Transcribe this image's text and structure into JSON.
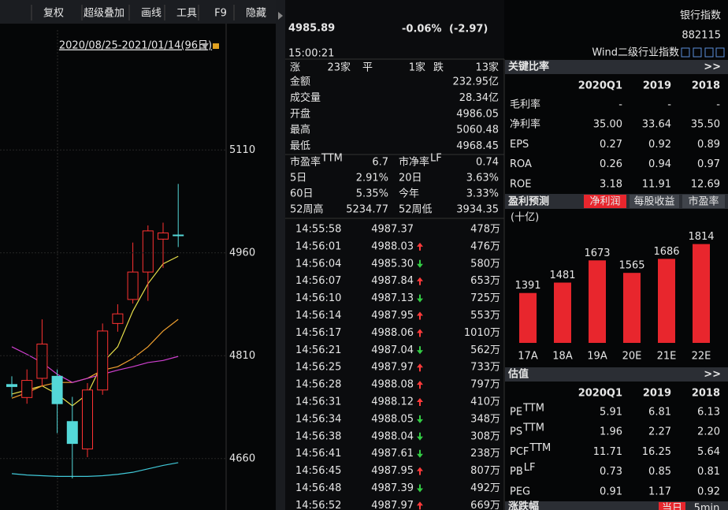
{
  "toolbar": [
    "复权",
    "超级叠加",
    "画线",
    "工具",
    "F9",
    "隐藏"
  ],
  "chart_data": [
    {
      "type": "candlestick",
      "date_range": "2020/08/25-2021/01/14(96日)",
      "ylim": [
        4585,
        5285
      ],
      "yticks": [
        4660,
        4810,
        4960,
        5110
      ],
      "grid": true,
      "up_color": "#ff3232",
      "down_color": "#54d8d8",
      "open": [
        4768,
        4749,
        4777,
        4780,
        4714,
        4674,
        4760,
        4857,
        4892,
        4932,
        4980,
        4986.05
      ],
      "high": [
        4780,
        4790,
        4863,
        4790,
        4750,
        4770,
        4857,
        4885,
        4975,
        5000,
        5004,
        5060.48
      ],
      "low": [
        4750,
        4740,
        4766,
        4697,
        4631,
        4662,
        4753,
        4845,
        4886,
        4890,
        4938,
        4968.45
      ],
      "close": [
        4765,
        4774,
        4827,
        4740,
        4682,
        4760,
        4846,
        4871,
        4932,
        4992,
        4989,
        4985.89
      ],
      "series": [
        {
          "color": "#e8e04a",
          "values": [
            4754,
            4760,
            4766,
            4754,
            4737,
            4754,
            4800,
            4823,
            4875,
            4915,
            4944,
            4955
          ]
        },
        {
          "color": "#f0a030",
          "values": [
            4748,
            4756,
            4766,
            4771,
            4771,
            4777,
            4789,
            4794,
            4806,
            4823,
            4846,
            4863
          ]
        },
        {
          "color": "#d040d0",
          "values": [
            4823,
            4812,
            4800,
            4783,
            4771,
            4777,
            4783,
            4789,
            4794,
            4800,
            4803,
            4809
          ]
        },
        {
          "color": "#40c8d8",
          "values": [
            4638,
            4636,
            4635,
            4634,
            4634,
            4634,
            4635,
            4637,
            4640,
            4645,
            4650,
            4654
          ]
        }
      ]
    },
    {
      "type": "bar",
      "unit": "(十亿)",
      "categories": [
        "17A",
        "18A",
        "19A",
        "20E",
        "21E",
        "22E"
      ],
      "values": [
        1391,
        1481,
        1673,
        1565,
        1686,
        1814
      ],
      "color": "#e8262d",
      "ylim": [
        960,
        1900
      ]
    }
  ],
  "header": {
    "price": "4985.89",
    "change_pct": "-0.06%",
    "change": "(-2.97)",
    "name": "银行指数",
    "code": "882115",
    "time": "15:00:21",
    "category": "Wind二级行业指数"
  },
  "breadth": {
    "up_label": "涨",
    "up": "23家",
    "flat_label": "平",
    "flat": "1家",
    "down_label": "跌",
    "down": "13家"
  },
  "quote": [
    {
      "label": "金额",
      "value": "232.95亿",
      "color": "#e6e6e6"
    },
    {
      "label": "成交量",
      "value": "28.34亿",
      "color": "#e6e6e6"
    },
    {
      "label": "开盘",
      "value": "4986.05",
      "color": "#33cc44"
    },
    {
      "label": "最高",
      "value": "5060.48",
      "color": "#ff3b3b"
    },
    {
      "label": "最低",
      "value": "4968.45",
      "color": "#33cc44"
    }
  ],
  "stats": [
    [
      {
        "label": "市盈率",
        "sup": "TTM",
        "value": "6.7",
        "color": "#e6e6e6"
      },
      {
        "label": "市净率",
        "sup": "LF",
        "value": "0.74",
        "color": "#e6e6e6"
      }
    ],
    [
      {
        "label": "5日",
        "value": "2.91%",
        "color": "#ff3b3b"
      },
      {
        "label": "20日",
        "value": "3.63%",
        "color": "#ff3b3b"
      }
    ],
    [
      {
        "label": "60日",
        "value": "5.35%",
        "color": "#ff3b3b"
      },
      {
        "label": "今年",
        "value": "3.33%",
        "color": "#ff3b3b"
      }
    ],
    [
      {
        "label": "52周高",
        "value": "5234.77",
        "color": "#e6e6e6"
      },
      {
        "label": "52周低",
        "value": "3934.35",
        "color": "#e6e6e6"
      }
    ]
  ],
  "ticks": [
    {
      "time": "14:55:58",
      "price": "4987.37",
      "volume": "478万",
      "trend": null
    },
    {
      "time": "14:56:01",
      "price": "4988.03",
      "volume": "476万",
      "trend": "up"
    },
    {
      "time": "14:56:04",
      "price": "4985.30",
      "volume": "580万",
      "trend": "down"
    },
    {
      "time": "14:56:07",
      "price": "4987.84",
      "volume": "653万",
      "trend": "up"
    },
    {
      "time": "14:56:10",
      "price": "4987.13",
      "volume": "725万",
      "trend": "down"
    },
    {
      "time": "14:56:14",
      "price": "4987.95",
      "volume": "553万",
      "trend": "up"
    },
    {
      "time": "14:56:17",
      "price": "4988.06",
      "volume": "1010万",
      "trend": "up"
    },
    {
      "time": "14:56:21",
      "price": "4987.04",
      "volume": "562万",
      "trend": "down"
    },
    {
      "time": "14:56:25",
      "price": "4987.97",
      "volume": "733万",
      "trend": "up"
    },
    {
      "time": "14:56:28",
      "price": "4988.08",
      "volume": "797万",
      "trend": "up"
    },
    {
      "time": "14:56:31",
      "price": "4988.12",
      "volume": "410万",
      "trend": "up"
    },
    {
      "time": "14:56:34",
      "price": "4988.05",
      "volume": "348万",
      "trend": "down"
    },
    {
      "time": "14:56:38",
      "price": "4988.04",
      "volume": "308万",
      "trend": "down"
    },
    {
      "time": "14:56:41",
      "price": "4987.61",
      "volume": "238万",
      "trend": "down"
    },
    {
      "time": "14:56:45",
      "price": "4987.95",
      "volume": "807万",
      "trend": "up"
    },
    {
      "time": "14:56:48",
      "price": "4987.39",
      "volume": "492万",
      "trend": "down"
    },
    {
      "time": "14:56:52",
      "price": "4987.97",
      "volume": "669万",
      "trend": "up"
    }
  ],
  "key_ratios": {
    "title": "关键比率",
    "more": ">>",
    "columns": [
      "2020Q1",
      "2019",
      "2018"
    ],
    "rows": [
      {
        "label": "毛利率",
        "values": [
          "-",
          "-",
          "-"
        ]
      },
      {
        "label": "净利率",
        "values": [
          "35.00",
          "33.64",
          "35.50"
        ]
      },
      {
        "label": "EPS",
        "values": [
          "0.27",
          "0.92",
          "0.89"
        ]
      },
      {
        "label": "ROA",
        "values": [
          "0.26",
          "0.94",
          "0.97"
        ]
      },
      {
        "label": "ROE",
        "values": [
          "3.18",
          "11.91",
          "12.69"
        ]
      }
    ]
  },
  "forecast": {
    "title": "盈利预测",
    "tabs": [
      "净利润",
      "每股收益",
      "市盈率"
    ]
  },
  "valuation": {
    "title": "估值",
    "more": ">>",
    "columns": [
      "2020Q1",
      "2019",
      "2018"
    ],
    "rows": [
      {
        "label": "PE",
        "sup": "TTM",
        "values": [
          "5.91",
          "6.81",
          "6.13"
        ]
      },
      {
        "label": "PS",
        "sup": "TTM",
        "values": [
          "1.96",
          "2.27",
          "2.20"
        ]
      },
      {
        "label": "PCF",
        "sup": "TTM",
        "values": [
          "11.71",
          "16.25",
          "5.64"
        ]
      },
      {
        "label": "PB",
        "sup": "LF",
        "values": [
          "0.73",
          "0.85",
          "0.81"
        ]
      },
      {
        "label": "PEG",
        "values": [
          "0.91",
          "1.17",
          "0.92"
        ]
      }
    ]
  },
  "footer": {
    "title": "涨跌幅",
    "tabs": [
      "当日",
      "5min"
    ]
  }
}
